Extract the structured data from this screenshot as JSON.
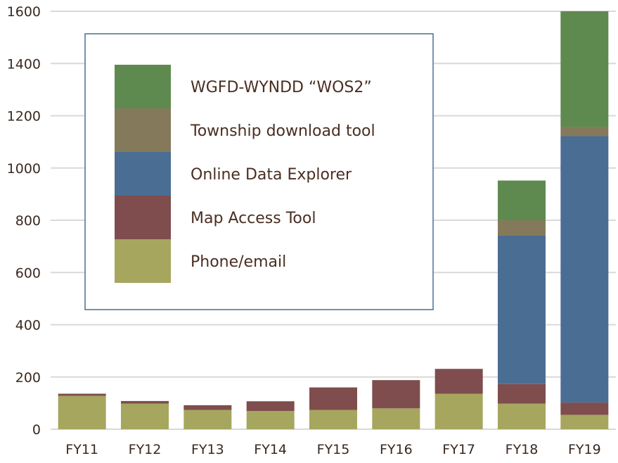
{
  "chart_data": {
    "type": "bar",
    "stacked": true,
    "categories": [
      "FY11",
      "FY12",
      "FY13",
      "FY14",
      "FY15",
      "FY16",
      "FY17",
      "FY18",
      "FY19"
    ],
    "series": [
      {
        "name": "Phone/email",
        "color": "#a6a65e",
        "values": [
          128,
          98,
          74,
          70,
          74,
          80,
          136,
          98,
          55
        ]
      },
      {
        "name": "Map Access Tool",
        "color": "#7f4d4d",
        "values": [
          8,
          10,
          18,
          37,
          86,
          108,
          95,
          75,
          47
        ]
      },
      {
        "name": "Online Data Explorer",
        "color": "#4a6e93",
        "values": [
          0,
          0,
          0,
          0,
          0,
          0,
          0,
          570,
          1020
        ]
      },
      {
        "name": "Township download tool",
        "color": "#847a5b",
        "values": [
          0,
          0,
          0,
          0,
          0,
          0,
          0,
          57,
          35
        ]
      },
      {
        "name": "WGFD-WYNDD “WOS2”",
        "color": "#5f8a4f",
        "values": [
          0,
          0,
          0,
          0,
          0,
          0,
          0,
          152,
          443
        ]
      }
    ],
    "ylim": [
      0,
      1600
    ],
    "yticks": [
      0,
      200,
      400,
      600,
      800,
      1000,
      1200,
      1400,
      1600
    ],
    "grid": true,
    "legend": "top-left-inside"
  }
}
